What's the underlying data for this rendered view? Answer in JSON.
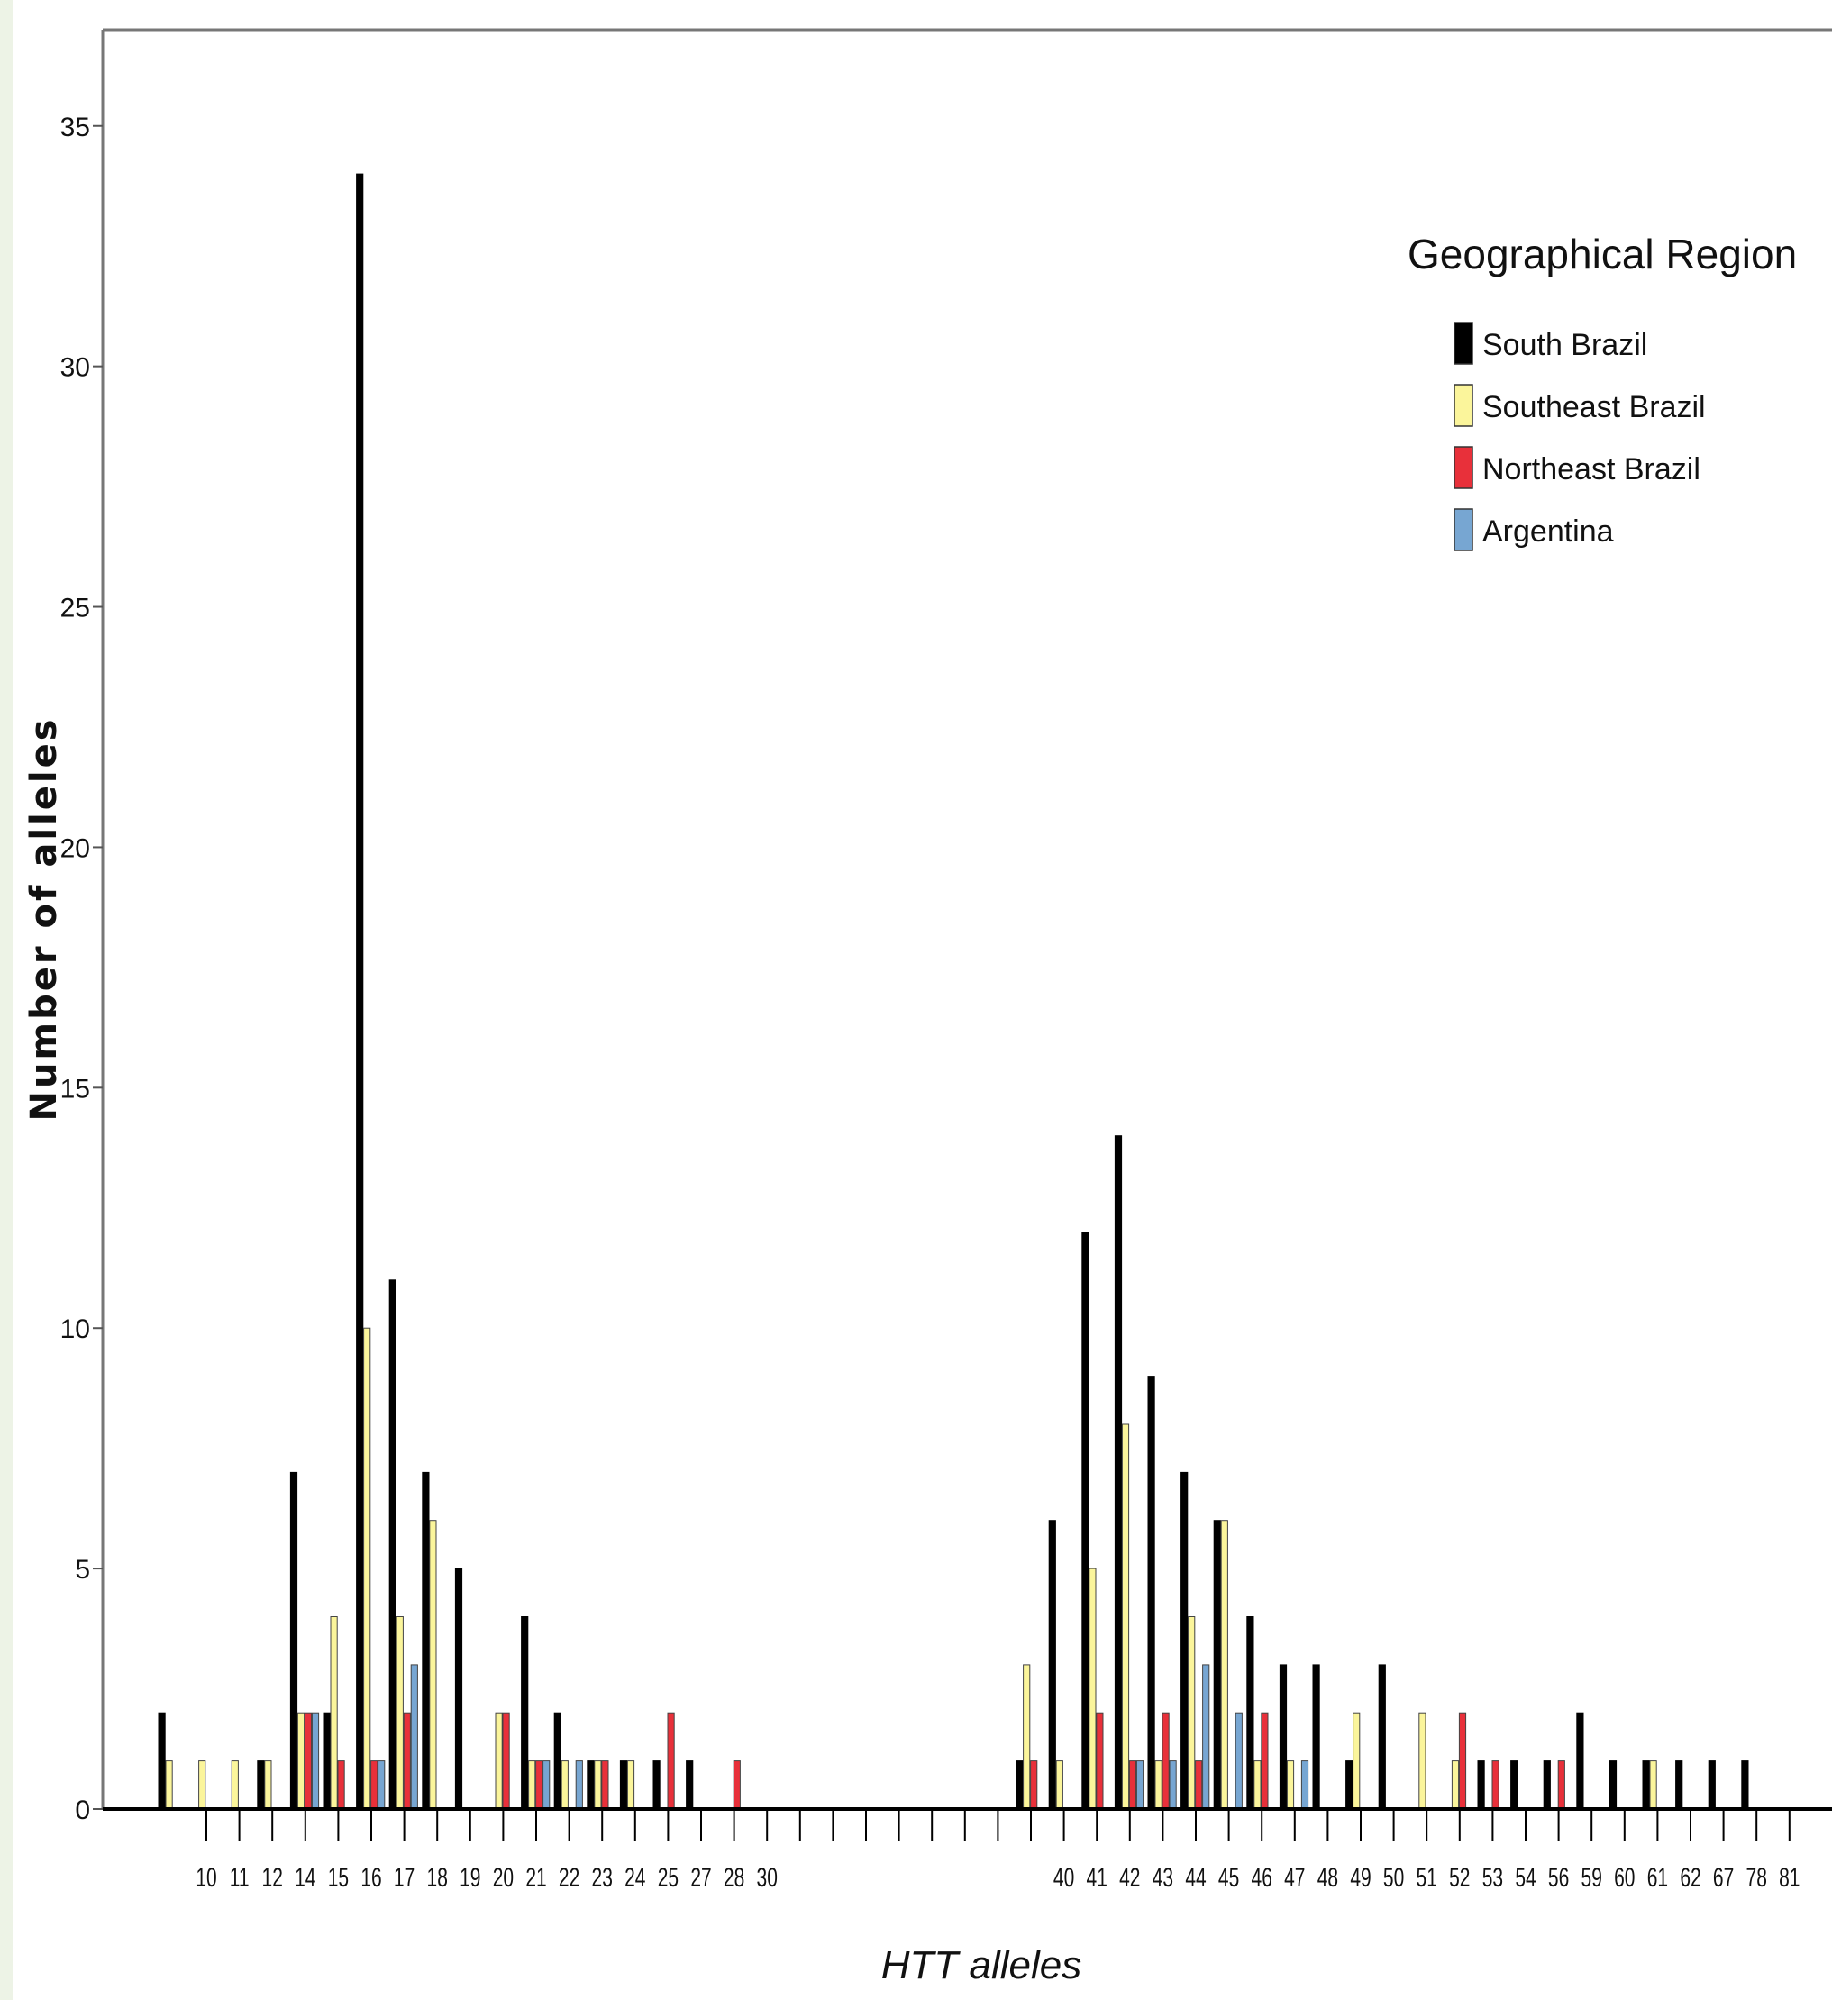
{
  "chart_data": {
    "type": "bar",
    "title": "",
    "xlabel": "HTT alleles",
    "ylabel": "Number of alleles",
    "ylim": [
      0,
      37
    ],
    "yticks": [
      0,
      5,
      10,
      15,
      20,
      25,
      30,
      35
    ],
    "grid": false,
    "legend": {
      "title": "Geographical Region",
      "placement": "top-right"
    },
    "categories": [
      "10",
      "11",
      "12",
      "14",
      "15",
      "16",
      "17",
      "18",
      "19",
      "20",
      "21",
      "22",
      "23",
      "24",
      "25",
      "27",
      "28",
      "30",
      "",
      "",
      "",
      "",
      "",
      "",
      "",
      "",
      "40",
      "41",
      "42",
      "43",
      "44",
      "45",
      "46",
      "47",
      "48",
      "49",
      "50",
      "51",
      "52",
      "53",
      "54",
      "56",
      "59",
      "60",
      "61",
      "62",
      "67",
      "78",
      "81"
    ],
    "series": [
      {
        "name": "South Brazil",
        "color": "#000000",
        "values": [
          2,
          0,
          0,
          1,
          7,
          2,
          34,
          11,
          7,
          5,
          0,
          4,
          2,
          1,
          1,
          1,
          1,
          0,
          0,
          0,
          0,
          0,
          0,
          0,
          0,
          0,
          1,
          6,
          12,
          14,
          9,
          7,
          6,
          4,
          3,
          3,
          1,
          3,
          0,
          0,
          1,
          1,
          1,
          2,
          1,
          1,
          1,
          1,
          1
        ]
      },
      {
        "name": "Southeast Brazil",
        "color": "#fbf59b",
        "values": [
          1,
          1,
          1,
          1,
          2,
          4,
          10,
          4,
          6,
          0,
          2,
          1,
          1,
          1,
          1,
          0,
          0,
          0,
          0,
          0,
          0,
          0,
          0,
          0,
          0,
          0,
          3,
          1,
          5,
          8,
          1,
          4,
          6,
          1,
          1,
          0,
          2,
          0,
          2,
          1,
          0,
          0,
          0,
          0,
          0,
          1,
          0,
          0,
          0
        ]
      },
      {
        "name": "Northeast Brazil",
        "color": "#e8303a",
        "values": [
          0,
          0,
          0,
          0,
          2,
          1,
          1,
          2,
          0,
          0,
          2,
          1,
          0,
          1,
          0,
          2,
          0,
          1,
          0,
          0,
          0,
          0,
          0,
          0,
          0,
          0,
          1,
          0,
          2,
          1,
          2,
          1,
          0,
          2,
          0,
          0,
          0,
          0,
          0,
          2,
          1,
          0,
          1,
          0,
          0,
          0,
          0,
          0,
          0
        ]
      },
      {
        "name": "Argentina",
        "color": "#77a6d2",
        "values": [
          0,
          0,
          0,
          0,
          2,
          0,
          1,
          3,
          0,
          0,
          0,
          1,
          1,
          0,
          0,
          0,
          0,
          0,
          0,
          0,
          0,
          0,
          0,
          0,
          0,
          0,
          0,
          0,
          0,
          1,
          1,
          3,
          2,
          0,
          1,
          0,
          0,
          0,
          0,
          0,
          0,
          0,
          0,
          0,
          0,
          0,
          0,
          0,
          0
        ]
      }
    ]
  }
}
